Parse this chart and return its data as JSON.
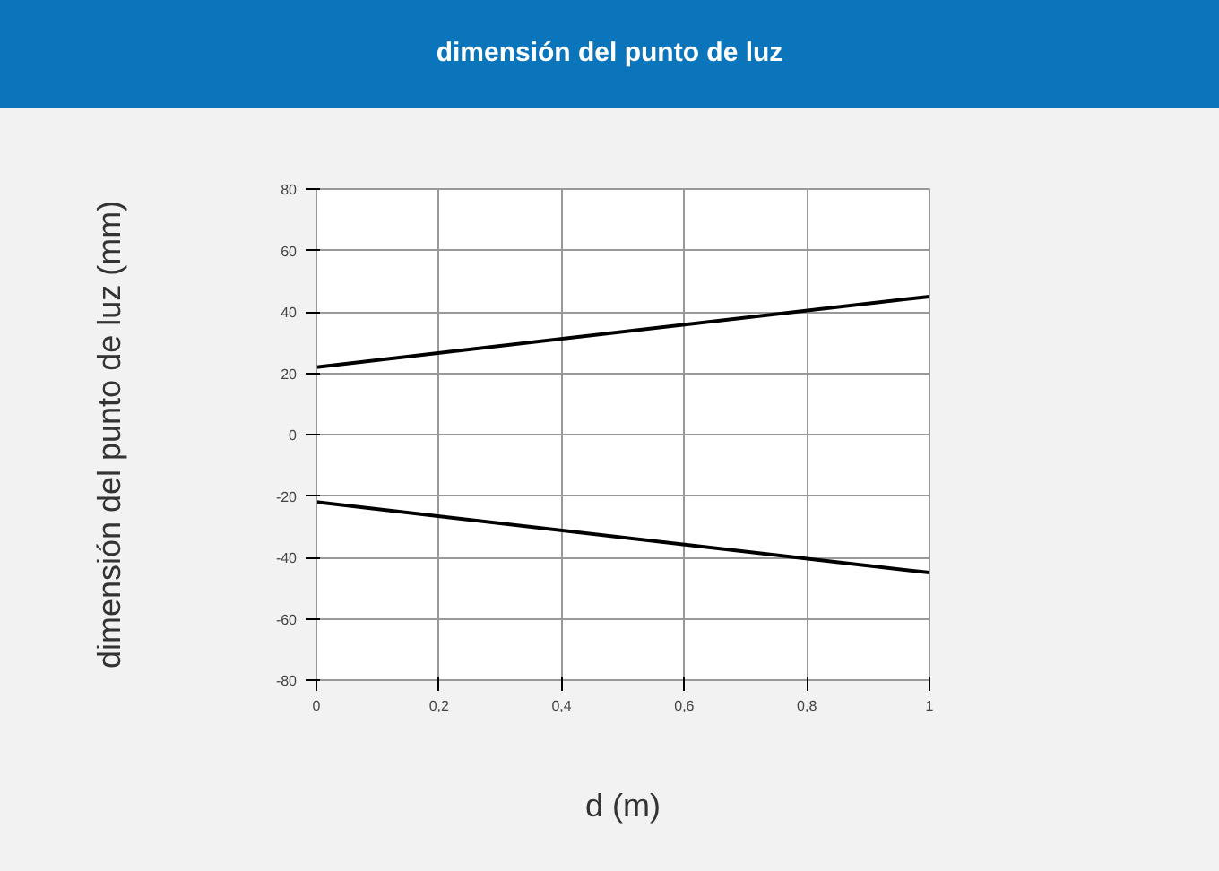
{
  "chart_data": {
    "type": "line",
    "title": "dimensión del punto de luz",
    "xlabel": "d (m)",
    "ylabel": "dimensión del punto de luz (mm)",
    "x": [
      0,
      1
    ],
    "series": [
      {
        "color": "#000000",
        "values": [
          22,
          45
        ]
      },
      {
        "color": "#000000",
        "values": [
          -22,
          -45
        ]
      }
    ],
    "xlim": [
      0,
      1
    ],
    "xticks": [
      0,
      {
        "value": 0.2,
        "label": "0,2"
      },
      {
        "value": 0.4,
        "label": "0,4"
      },
      {
        "value": 0.6,
        "label": "0,6"
      },
      {
        "value": 0.8,
        "label": "0,8"
      },
      1
    ],
    "ylim": [
      -80,
      80
    ],
    "yticks": [
      -80,
      -60,
      -40,
      -20,
      0,
      20,
      40,
      60,
      80
    ],
    "grid": true,
    "marker": "none",
    "line_style": "solid"
  }
}
